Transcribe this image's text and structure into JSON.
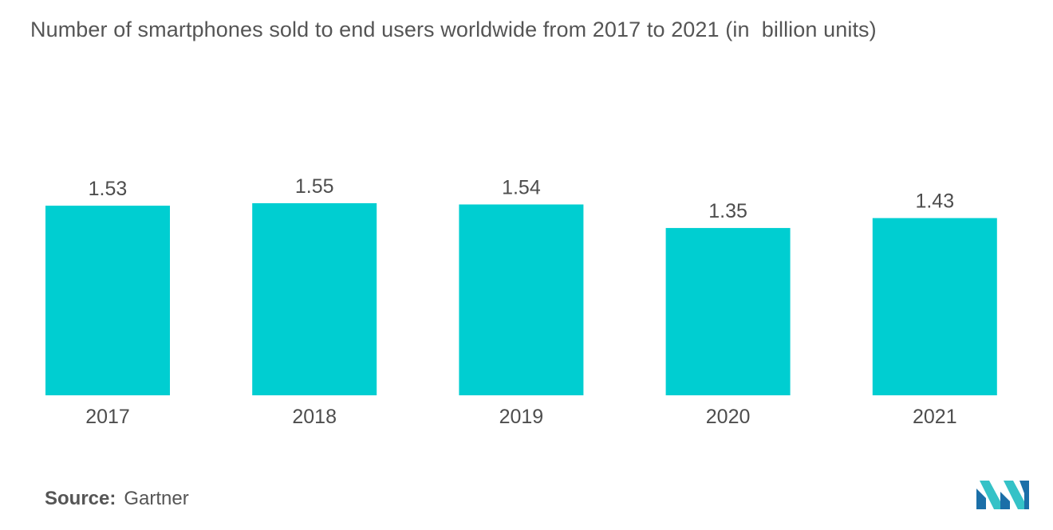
{
  "chart_data": {
    "type": "bar",
    "title": "Number of smartphones sold to end users worldwide from 2017 to 2021 (in  billion units)",
    "categories": [
      "2017",
      "2018",
      "2019",
      "2020",
      "2021"
    ],
    "values": [
      1.53,
      1.55,
      1.54,
      1.35,
      1.43
    ],
    "value_labels": [
      "1.53",
      "1.55",
      "1.54",
      "1.35",
      "1.43"
    ],
    "bar_color": "#00CED1",
    "grid": false,
    "legend": "none"
  },
  "source": {
    "label": "Source:",
    "value": "Gartner"
  },
  "logo": {
    "icon": "mordor-intelligence-logo-icon",
    "colors": [
      "#1B6FA8",
      "#35C2C7"
    ]
  }
}
